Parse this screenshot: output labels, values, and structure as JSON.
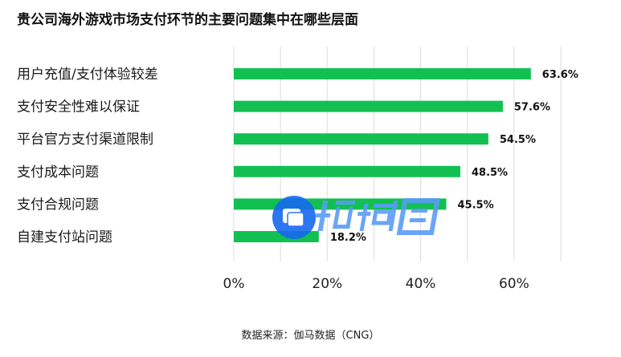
{
  "chart_data": {
    "type": "bar",
    "orientation": "horizontal",
    "title": "贵公司海外游戏市场支付环节的主要问题集中在哪些层面",
    "categories": [
      "用户充值/支付体验较差",
      "支付安全性难以保证",
      "平台官方支付渠道限制",
      "支付成本问题",
      "支付合规问题",
      "自建支付站问题"
    ],
    "values": [
      63.6,
      57.6,
      54.5,
      48.5,
      45.5,
      18.2
    ],
    "value_labels": [
      "63.6%",
      "57.6%",
      "54.5%",
      "48.5%",
      "45.5%",
      "18.2%"
    ],
    "xlim": [
      0,
      70
    ],
    "xticks": [
      0,
      20,
      40,
      60
    ],
    "xtick_labels": [
      "0%",
      "20%",
      "40%",
      "60%"
    ],
    "grid_step": 10,
    "grid": true,
    "bar_color": "#12c052",
    "grid_color": "#dcdcdc"
  },
  "source": "数据来源：伽马数据（CNG）",
  "watermark": {
    "text": "领域圈",
    "color": "#2f7bf5"
  }
}
